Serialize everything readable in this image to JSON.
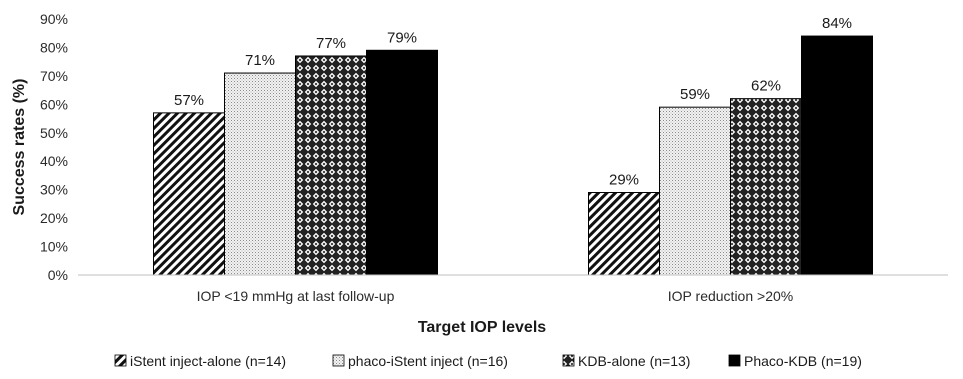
{
  "chart_data": {
    "type": "bar",
    "xlabel": "Target IOP levels",
    "ylabel": "Success rates (%)",
    "ylim": [
      0,
      90
    ],
    "yticks": [
      "0%",
      "10%",
      "20%",
      "30%",
      "40%",
      "50%",
      "60%",
      "70%",
      "80%",
      "90%"
    ],
    "categories": [
      "IOP <19 mmHg at last follow-up",
      "IOP reduction >20%"
    ],
    "series": [
      {
        "name": "iStent inject-alone (n=14)",
        "values": [
          57,
          29
        ],
        "labels": [
          "57%",
          "29%"
        ],
        "pattern": "diagonal-hatch"
      },
      {
        "name": "phaco-iStent inject (n=16)",
        "values": [
          71,
          59
        ],
        "labels": [
          "71%",
          "59%"
        ],
        "pattern": "fine-dots"
      },
      {
        "name": "KDB-alone (n=13)",
        "values": [
          77,
          62
        ],
        "labels": [
          "77%",
          "62%"
        ],
        "pattern": "diamond-checker"
      },
      {
        "name": "Phaco-KDB (n=19)",
        "values": [
          79,
          84
        ],
        "labels": [
          "79%",
          "84%"
        ],
        "pattern": "solid-black"
      }
    ],
    "grid": false,
    "legend_position": "bottom"
  }
}
